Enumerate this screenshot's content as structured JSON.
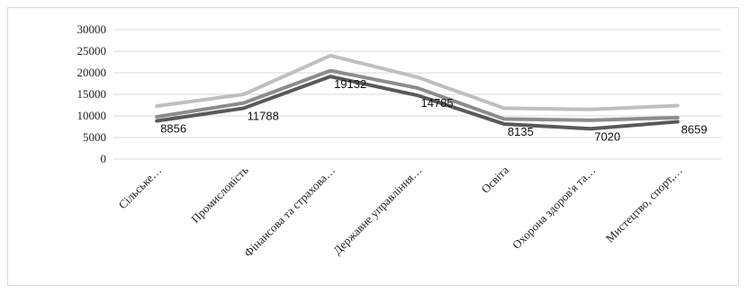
{
  "chart_data": {
    "type": "line",
    "categories": [
      "Сільське…",
      "Промисловість",
      "Фінансова та страхова…",
      "Державне управління…",
      "Освіта",
      "Охорона здоров'я та…",
      "Мистецтво, спорт,…"
    ],
    "series": [
      {
        "values": [
          12300,
          15000,
          24000,
          19000,
          11800,
          11500,
          12400
        ],
        "color": "#bfbfbf"
      },
      {
        "values": [
          9800,
          13000,
          20500,
          16500,
          9300,
          9000,
          9600
        ],
        "color": "#8c8c8c"
      },
      {
        "values": [
          8856,
          11788,
          19132,
          14785,
          8135,
          7020,
          8659
        ],
        "color": "#595959",
        "data_labels": [
          "8856",
          "11788",
          "19132",
          "14785",
          "8135",
          "7020",
          "8659"
        ]
      }
    ],
    "y_ticks": [
      "0",
      "5000",
      "10000",
      "15000",
      "20000",
      "25000",
      "30000"
    ],
    "ylim": [
      0,
      30000
    ],
    "grid": true,
    "legend": "none"
  }
}
